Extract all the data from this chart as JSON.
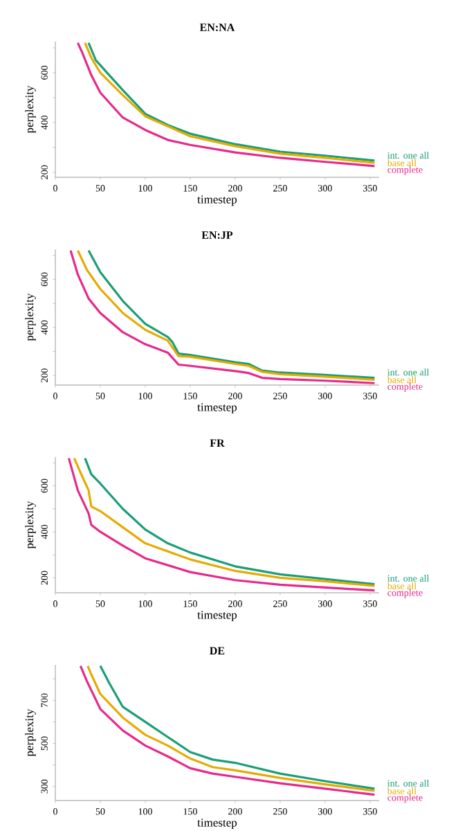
{
  "chart_data": [
    {
      "type": "line",
      "title": "EN:NA",
      "xlabel": "timestep",
      "ylabel": "perplexity",
      "xlim": [
        0,
        360
      ],
      "ylim": [
        180,
        725
      ],
      "xticks": [
        0,
        50,
        100,
        150,
        200,
        250,
        300,
        350
      ],
      "yticks": [
        200,
        {
          "value": 300,
          "label": null
        },
        400,
        {
          "value": 500,
          "label": null
        },
        600,
        {
          "value": 700,
          "label": null
        }
      ],
      "series": [
        {
          "name": "int. one all",
          "color": "#1b9e77",
          "x": [
            37,
            45,
            50,
            60,
            75,
            100,
            125,
            150,
            200,
            250,
            300,
            355
          ],
          "values": [
            720,
            650,
            630,
            590,
            530,
            435,
            390,
            355,
            313,
            283,
            267,
            247
          ]
        },
        {
          "name": "base all",
          "color": "#e6ab02",
          "x": [
            33,
            40,
            50,
            75,
            100,
            150,
            200,
            250,
            300,
            355
          ],
          "values": [
            720,
            660,
            600,
            510,
            425,
            345,
            305,
            275,
            258,
            238
          ]
        },
        {
          "name": "complete",
          "color": "#e7298a",
          "x": [
            25,
            30,
            40,
            50,
            75,
            100,
            125,
            150,
            200,
            250,
            300,
            355
          ],
          "values": [
            720,
            680,
            590,
            520,
            420,
            370,
            330,
            310,
            280,
            258,
            242,
            225
          ]
        }
      ]
    },
    {
      "type": "line",
      "title": "EN:JP",
      "xlabel": "timestep",
      "ylabel": "perplexity",
      "xlim": [
        0,
        360
      ],
      "ylim": [
        160,
        725
      ],
      "xticks": [
        0,
        50,
        100,
        150,
        200,
        250,
        300,
        350
      ],
      "yticks": [
        200,
        {
          "value": 300,
          "label": null
        },
        400,
        {
          "value": 500,
          "label": null
        },
        600,
        {
          "value": 700,
          "label": null
        }
      ],
      "series": [
        {
          "name": "int. one all",
          "color": "#1b9e77",
          "x": [
            37,
            50,
            75,
            100,
            125,
            130,
            137,
            150,
            200,
            215,
            230,
            250,
            300,
            355
          ],
          "values": [
            720,
            630,
            510,
            415,
            360,
            340,
            291,
            285,
            255,
            248,
            220,
            212,
            202,
            190
          ]
        },
        {
          "name": "base all",
          "color": "#e6ab02",
          "x": [
            25,
            35,
            50,
            75,
            100,
            125,
            137,
            150,
            200,
            215,
            230,
            250,
            300,
            355
          ],
          "values": [
            720,
            640,
            560,
            460,
            390,
            345,
            280,
            278,
            248,
            240,
            215,
            205,
            195,
            182
          ]
        },
        {
          "name": "complete",
          "color": "#e7298a",
          "x": [
            17,
            25,
            37,
            50,
            75,
            100,
            125,
            137,
            150,
            200,
            215,
            230,
            250,
            300,
            355
          ],
          "values": [
            720,
            620,
            520,
            460,
            380,
            330,
            295,
            245,
            240,
            218,
            210,
            190,
            185,
            178,
            168
          ]
        }
      ]
    },
    {
      "type": "line",
      "title": "FR",
      "xlabel": "timestep",
      "ylabel": "perplexity",
      "xlim": [
        0,
        360
      ],
      "ylim": [
        135,
        725
      ],
      "xticks": [
        0,
        50,
        100,
        150,
        200,
        250,
        300,
        350
      ],
      "yticks": [
        200,
        {
          "value": 300,
          "label": null
        },
        400,
        {
          "value": 500,
          "label": null
        },
        600,
        {
          "value": 700,
          "label": null
        }
      ],
      "series": [
        {
          "name": "int. one all",
          "color": "#1b9e77",
          "x": [
            33,
            40,
            50,
            75,
            100,
            125,
            150,
            200,
            250,
            300,
            355
          ],
          "values": [
            720,
            650,
            610,
            500,
            410,
            350,
            310,
            250,
            215,
            195,
            172
          ]
        },
        {
          "name": "base all",
          "color": "#e6ab02",
          "x": [
            21,
            30,
            37,
            40,
            50,
            75,
            100,
            150,
            200,
            250,
            300,
            355
          ],
          "values": [
            720,
            640,
            580,
            510,
            490,
            420,
            350,
            280,
            230,
            200,
            185,
            165
          ]
        },
        {
          "name": "complete",
          "color": "#e7298a",
          "x": [
            15,
            20,
            25,
            37,
            40,
            50,
            75,
            100,
            150,
            200,
            250,
            300,
            355
          ],
          "values": [
            720,
            650,
            580,
            480,
            430,
            400,
            340,
            285,
            225,
            190,
            170,
            158,
            145
          ]
        }
      ]
    },
    {
      "type": "line",
      "title": "DE",
      "xlabel": "timestep",
      "ylabel": "perplexity",
      "xlim": [
        0,
        360
      ],
      "ylim": [
        235,
        865
      ],
      "xticks": [
        0,
        50,
        100,
        150,
        200,
        250,
        300,
        350
      ],
      "yticks": [
        300,
        {
          "value": 400,
          "label": null
        },
        500,
        {
          "value": 600,
          "label": null
        },
        700,
        {
          "value": 800,
          "label": null
        }
      ],
      "series": [
        {
          "name": "int. one all",
          "color": "#1b9e77",
          "x": [
            50,
            60,
            75,
            100,
            125,
            150,
            175,
            200,
            250,
            300,
            355
          ],
          "values": [
            860,
            780,
            670,
            600,
            530,
            460,
            425,
            410,
            360,
            325,
            290
          ]
        },
        {
          "name": "base all",
          "color": "#e6ab02",
          "x": [
            36,
            40,
            50,
            75,
            100,
            125,
            150,
            175,
            200,
            250,
            300,
            355
          ],
          "values": [
            860,
            820,
            730,
            620,
            540,
            490,
            430,
            390,
            375,
            340,
            310,
            280
          ]
        },
        {
          "name": "complete",
          "color": "#e7298a",
          "x": [
            28,
            35,
            50,
            75,
            100,
            125,
            150,
            175,
            200,
            250,
            300,
            355
          ],
          "values": [
            860,
            790,
            660,
            560,
            490,
            440,
            385,
            360,
            345,
            315,
            290,
            262
          ]
        }
      ]
    }
  ]
}
